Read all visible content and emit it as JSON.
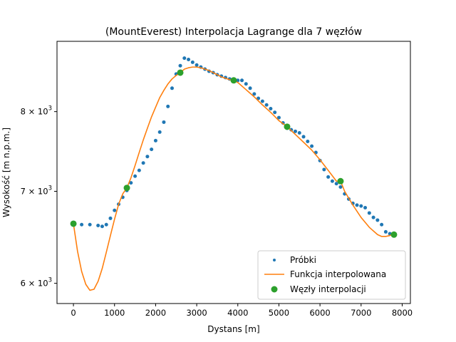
{
  "chart_data": {
    "type": "line",
    "title": "(MountEverest) Interpolacja Lagrange dla 7 węzłów",
    "xlabel": "Dystans [m]",
    "ylabel": "Wysokość [m n.p.m.]",
    "y_scale": "log",
    "xlim": [
      -400,
      8200
    ],
    "ylim": [
      5800,
      9000
    ],
    "x_ticks": [
      0,
      1000,
      2000,
      3000,
      4000,
      5000,
      6000,
      7000,
      8000
    ],
    "x_tick_labels": [
      "0",
      "1000",
      "2000",
      "3000",
      "4000",
      "5000",
      "6000",
      "7000",
      "8000"
    ],
    "y_ticks": [
      6000,
      7000,
      8000
    ],
    "y_tick_bases": [
      "6 × 10",
      "7 × 10",
      "8 × 10"
    ],
    "y_tick_exponent": "3",
    "grid": false,
    "legend_position": "lower-right",
    "colors": {
      "samples": "#1f77b4",
      "interpolated": "#ff7f0e",
      "nodes": "#2ca02c"
    },
    "series": [
      {
        "name": "Próbki",
        "style": "points",
        "x": [
          0,
          200,
          400,
          600,
          700,
          800,
          900,
          1000,
          1100,
          1200,
          1300,
          1400,
          1500,
          1600,
          1700,
          1800,
          1900,
          2000,
          2100,
          2200,
          2300,
          2400,
          2500,
          2600,
          2700,
          2800,
          2900,
          3000,
          3100,
          3200,
          3300,
          3400,
          3500,
          3600,
          3700,
          3800,
          3900,
          4000,
          4100,
          4200,
          4300,
          4400,
          4500,
          4600,
          4700,
          4800,
          4900,
          5000,
          5100,
          5200,
          5300,
          5400,
          5500,
          5600,
          5700,
          5800,
          5900,
          6000,
          6100,
          6200,
          6300,
          6400,
          6500,
          6600,
          6700,
          6800,
          6900,
          7000,
          7100,
          7200,
          7300,
          7400,
          7500,
          7600,
          7700,
          7800
        ],
        "y": [
          6630,
          6620,
          6620,
          6610,
          6600,
          6620,
          6690,
          6780,
          6850,
          6930,
          7010,
          7100,
          7180,
          7250,
          7340,
          7420,
          7510,
          7620,
          7730,
          7860,
          8070,
          8320,
          8520,
          8640,
          8750,
          8730,
          8690,
          8650,
          8620,
          8590,
          8560,
          8540,
          8510,
          8490,
          8470,
          8450,
          8440,
          8430,
          8430,
          8380,
          8320,
          8240,
          8180,
          8140,
          8090,
          8040,
          7990,
          7920,
          7850,
          7780,
          7760,
          7740,
          7720,
          7670,
          7610,
          7550,
          7470,
          7370,
          7260,
          7170,
          7120,
          7090,
          7050,
          6970,
          6910,
          6860,
          6840,
          6830,
          6810,
          6750,
          6700,
          6670,
          6620,
          6540,
          6520,
          6500
        ]
      },
      {
        "name": "Funkcja interpolowana",
        "style": "line",
        "x": [
          0,
          100,
          200,
          300,
          400,
          500,
          600,
          700,
          800,
          900,
          1000,
          1100,
          1200,
          1300,
          1400,
          1500,
          1600,
          1700,
          1800,
          1900,
          2000,
          2100,
          2200,
          2300,
          2400,
          2500,
          2600,
          2700,
          2800,
          2900,
          3000,
          3100,
          3200,
          3300,
          3400,
          3500,
          3600,
          3700,
          3800,
          3900,
          4000,
          4200,
          4400,
          4600,
          4800,
          5000,
          5200,
          5400,
          5600,
          5800,
          6000,
          6200,
          6400,
          6500,
          6600,
          6800,
          7000,
          7200,
          7400,
          7500,
          7600,
          7700,
          7800
        ],
        "y": [
          6630,
          6330,
          6120,
          5990,
          5930,
          5940,
          6020,
          6150,
          6320,
          6500,
          6680,
          6850,
          6970,
          7040,
          7160,
          7310,
          7470,
          7630,
          7780,
          7930,
          8060,
          8190,
          8290,
          8380,
          8450,
          8500,
          8540,
          8590,
          8610,
          8620,
          8620,
          8610,
          8590,
          8570,
          8540,
          8510,
          8480,
          8460,
          8440,
          8430,
          8400,
          8300,
          8200,
          8090,
          7990,
          7880,
          7800,
          7700,
          7600,
          7500,
          7380,
          7250,
          7120,
          7120,
          7000,
          6840,
          6700,
          6590,
          6510,
          6490,
          6490,
          6500,
          6520
        ]
      },
      {
        "name": "Węzły interpolacji",
        "style": "markers",
        "x": [
          0,
          1300,
          2600,
          3900,
          5200,
          6500,
          7800
        ],
        "y": [
          6630,
          7040,
          8540,
          8430,
          7800,
          7120,
          6510
        ]
      }
    ]
  }
}
